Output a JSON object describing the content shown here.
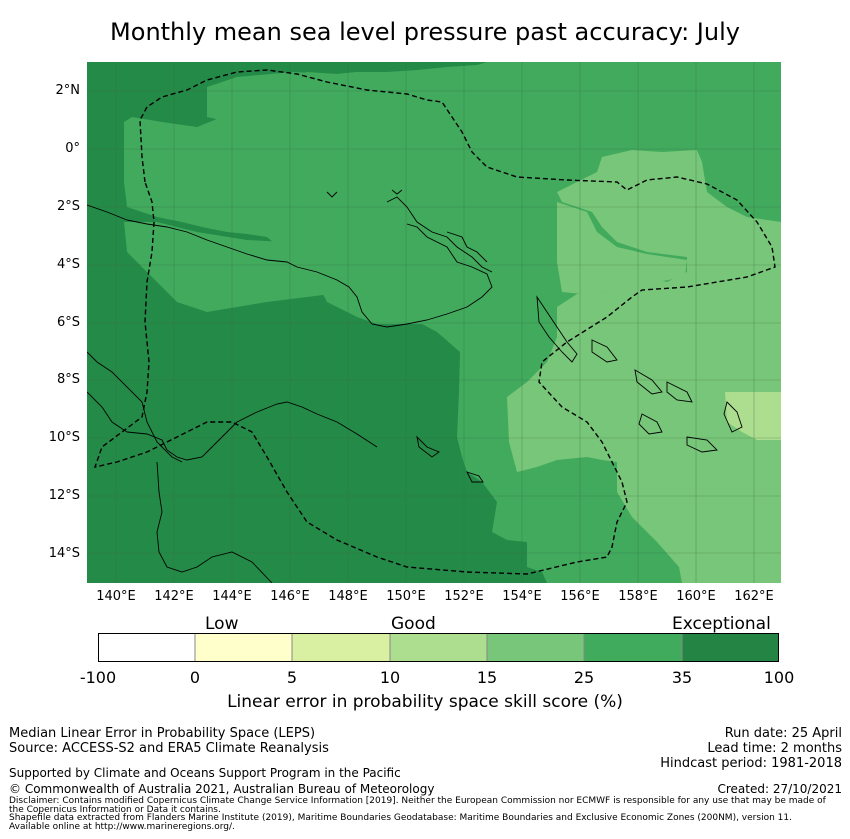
{
  "title": "Monthly mean sea level pressure past accuracy: July",
  "map": {
    "lat_ticks": [
      "2°N",
      "0°",
      "2°S",
      "4°S",
      "6°S",
      "8°S",
      "10°S",
      "12°S",
      "14°S"
    ],
    "lon_ticks": [
      "140°E",
      "142°E",
      "144°E",
      "146°E",
      "148°E",
      "150°E",
      "152°E",
      "154°E",
      "156°E",
      "158°E",
      "160°E",
      "162°E"
    ],
    "colors": {
      "very_dark": "#248a47",
      "dark": "#41aa5d",
      "medium": "#78c679",
      "light": "#addd8e"
    }
  },
  "colorbar": {
    "categories": [
      "Low",
      "Good",
      "Exceptional"
    ],
    "ticks": [
      "-100",
      "0",
      "5",
      "10",
      "15",
      "25",
      "35",
      "100"
    ],
    "colors": [
      "#ffffff",
      "#ffffcc",
      "#d9f0a3",
      "#addd8e",
      "#78c679",
      "#41ab5d",
      "#238443"
    ],
    "label": "Linear error in probability space skill score (%)"
  },
  "info": {
    "left1": "Median Linear Error in Probability Space (LEPS)",
    "left2": "Source: ACCESS-S2 and ERA5 Climate Reanalysis",
    "supported": "Supported by Climate and Oceans Support Program in the Pacific",
    "copyright": "© Commonwealth of Australia 2021, Australian Bureau of Meteorology",
    "disclaimer1": "Disclaimer: Contains modified Copernicus Climate Change Service Information [2019]. Neither the European Commission nor ECMWF is responsible for any use that may be made of",
    "disclaimer2": "the Copernicus Information or Data it contains.",
    "shapefile1": "Shapefile data extracted from Flanders Marine Institute (2019), Maritime Boundaries Geodatabase: Maritime Boundaries and Exclusive Economic Zones (200NM), version 11.",
    "shapefile2": "Available online at http://www.marineregions.org/.",
    "run_date": "Run date: 25 April",
    "lead_time": "Lead time: 2 months",
    "hindcast": "Hindcast period: 1981-2018",
    "created": "Created: 27/10/2021"
  }
}
